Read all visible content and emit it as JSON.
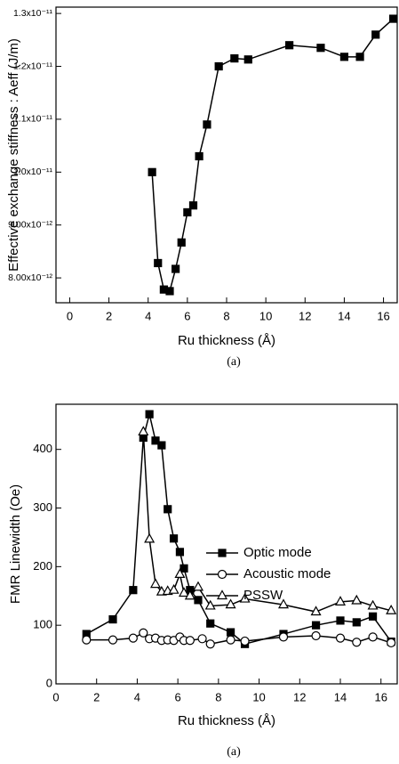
{
  "chart_data": [
    {
      "type": "line",
      "marker": "square-filled",
      "color": "#000000",
      "x_label": "Ru thickness (Å)",
      "y_label": "Effective exchange stiffness : Aeff (J/m)",
      "caption": "(a)",
      "x": [
        4.2,
        4.5,
        4.8,
        5.1,
        5.4,
        5.7,
        6.0,
        6.3,
        6.6,
        7.0,
        7.6,
        8.4,
        9.1,
        11.2,
        12.8,
        14.0,
        14.8,
        15.6,
        16.5
      ],
      "values": [
        1e-11,
        8.28e-12,
        7.78e-12,
        7.75e-12,
        8.17e-12,
        8.67e-12,
        9.24e-12,
        9.37e-12,
        1.03e-11,
        1.09e-11,
        1.2e-11,
        1.215e-11,
        1.213e-11,
        1.24e-11,
        1.235e-11,
        1.218e-11,
        1.218e-11,
        1.26e-11,
        1.29e-11
      ],
      "xlim": [
        -0.7,
        16.7
      ],
      "xticks": [
        0,
        2,
        4,
        6,
        8,
        10,
        12,
        14,
        16
      ],
      "ylim": [
        7.53e-12,
        1.312e-11
      ],
      "yticks": [
        {
          "value": 8e-12,
          "label": "8.00x10⁻¹²"
        },
        {
          "value": 9e-12,
          "label": "9.00x10⁻¹²"
        },
        {
          "value": 1e-11,
          "label": "1.0x10⁻¹¹"
        },
        {
          "value": 1.1e-11,
          "label": "1.1x10⁻¹¹"
        },
        {
          "value": 1.2e-11,
          "label": "1.2x10⁻¹¹"
        },
        {
          "value": 1.3e-11,
          "label": "1.3x10⁻¹¹"
        }
      ]
    },
    {
      "type": "line",
      "x_label": "Ru thickness (Å)",
      "y_label": "FMR Linewidth (Oe)",
      "caption": "(a)",
      "legend": "right",
      "xlim": [
        0,
        16.8
      ],
      "xticks": [
        0,
        2,
        4,
        6,
        8,
        10,
        12,
        14,
        16
      ],
      "ylim": [
        0,
        477
      ],
      "yticks": [
        0,
        100,
        200,
        300,
        400
      ],
      "series": [
        {
          "name": "Optic mode",
          "color": "#000000",
          "marker": "square-filled",
          "x": [
            1.5,
            2.8,
            3.8,
            4.3,
            4.6,
            4.9,
            5.2,
            5.5,
            5.8,
            6.1,
            6.3,
            6.6,
            7.0,
            7.6,
            8.6,
            9.3,
            11.2,
            12.8,
            14.0,
            14.8,
            15.6,
            16.5
          ],
          "values": [
            85,
            110,
            160,
            420,
            460,
            415,
            407,
            298,
            248,
            225,
            197,
            160,
            143,
            103,
            88,
            68,
            85,
            100,
            108,
            105,
            115,
            72
          ]
        },
        {
          "name": "Acoustic mode",
          "color": "#000000",
          "marker": "circle-open",
          "x": [
            1.5,
            2.8,
            3.8,
            4.3,
            4.6,
            4.9,
            5.2,
            5.5,
            5.8,
            6.1,
            6.3,
            6.6,
            7.2,
            7.6,
            8.6,
            9.3,
            11.2,
            12.8,
            14.0,
            14.8,
            15.6,
            16.5
          ],
          "values": [
            75,
            75,
            78,
            87,
            77,
            78,
            74,
            75,
            74,
            80,
            74,
            74,
            77,
            68,
            75,
            73,
            80,
            82,
            78,
            71,
            80,
            70
          ]
        },
        {
          "name": "PSSW",
          "color": "#000000",
          "marker": "triangle-open",
          "x": [
            4.3,
            4.6,
            4.9,
            5.2,
            5.5,
            5.8,
            6.1,
            6.3,
            6.6,
            7.0,
            7.6,
            8.6,
            9.3,
            11.2,
            12.8,
            14.0,
            14.8,
            15.6,
            16.5
          ],
          "values": [
            430,
            247,
            170,
            157,
            158,
            160,
            187,
            155,
            150,
            165,
            133,
            135,
            145,
            135,
            123,
            140,
            142,
            133,
            125
          ]
        }
      ]
    }
  ]
}
